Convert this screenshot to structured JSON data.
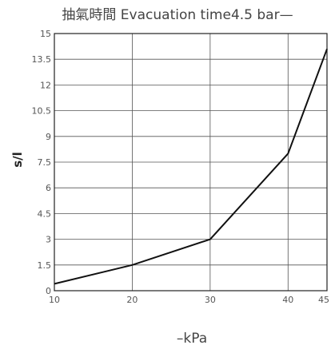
{
  "chart_data": {
    "type": "line",
    "title": "抽氣時間 Evacuation time4.5 bar—",
    "xlabel": "–kPa",
    "ylabel": "s/l",
    "x_ticks": [
      "10",
      "20",
      "30",
      "40",
      "45"
    ],
    "y_ticks": [
      "0",
      "1.5",
      "3",
      "4.5",
      "6",
      "7.5",
      "9",
      "10.5",
      "12",
      "13.5",
      "15"
    ],
    "xlim": [
      10,
      45
    ],
    "ylim": [
      0,
      15
    ],
    "grid": true,
    "series": [
      {
        "x": [
          10,
          20,
          30,
          40,
          45
        ],
        "y": [
          0.4,
          1.5,
          3.0,
          8.0,
          14.1
        ]
      }
    ]
  }
}
